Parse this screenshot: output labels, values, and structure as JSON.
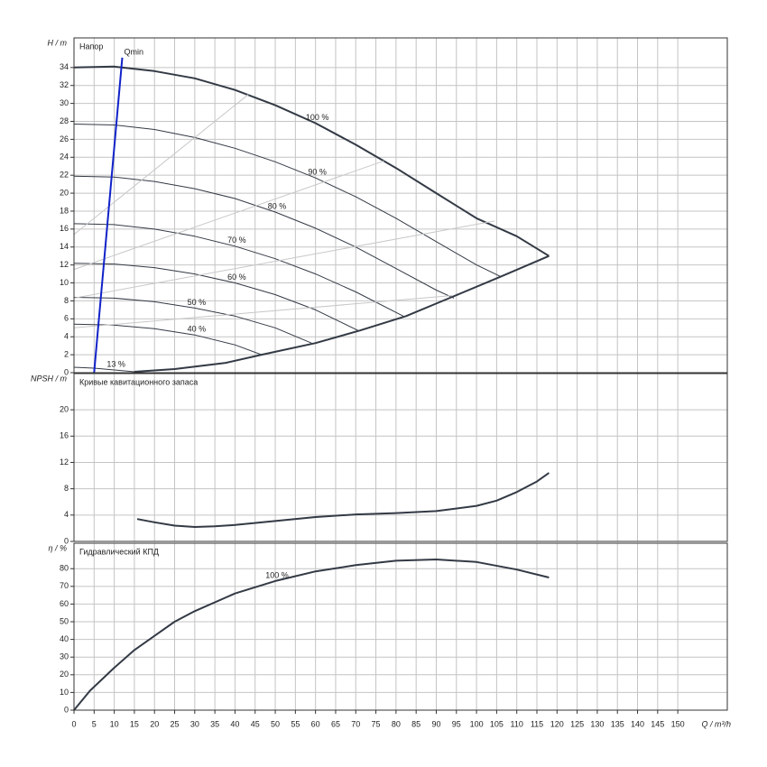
{
  "chart_data": [
    {
      "type": "line",
      "title": "Напор",
      "ylabel": "H / m",
      "ylim": [
        0,
        37.3
      ],
      "yticks": [
        0,
        2,
        4,
        6,
        8,
        10,
        12,
        14,
        16,
        18,
        20,
        22,
        24,
        26,
        28,
        30,
        32,
        34
      ],
      "grid": true,
      "series": [
        {
          "name": "100 %",
          "color": "#333a45",
          "width": 2,
          "x": [
            0,
            10,
            20,
            30,
            40,
            50,
            60,
            70,
            80,
            90,
            100,
            110,
            118
          ],
          "values": [
            34,
            34.1,
            33.6,
            32.8,
            31.5,
            29.8,
            27.8,
            25.4,
            22.8,
            20,
            17.2,
            15.2,
            13
          ]
        },
        {
          "name": "90 %",
          "color": "#333a45",
          "width": 1,
          "x": [
            0,
            10,
            20,
            30,
            40,
            50,
            60,
            70,
            80,
            90,
            100,
            106
          ],
          "values": [
            27.7,
            27.6,
            27.1,
            26.2,
            25,
            23.5,
            21.7,
            19.6,
            17.2,
            14.6,
            12,
            10.7
          ]
        },
        {
          "name": "80 %",
          "color": "#333a45",
          "width": 1,
          "x": [
            0,
            10,
            20,
            30,
            40,
            50,
            60,
            70,
            80,
            90,
            94.4
          ],
          "values": [
            21.9,
            21.8,
            21.3,
            20.5,
            19.4,
            17.9,
            16.1,
            14,
            11.6,
            9.2,
            8.3
          ]
        },
        {
          "name": "70 %",
          "color": "#333a45",
          "width": 1,
          "x": [
            0,
            10,
            20,
            30,
            40,
            50,
            60,
            70,
            81.8
          ],
          "values": [
            16.6,
            16.5,
            16,
            15.2,
            14.1,
            12.7,
            11,
            9,
            6.3
          ]
        },
        {
          "name": "60 %",
          "color": "#333a45",
          "width": 1,
          "x": [
            0,
            10,
            20,
            30,
            40,
            50,
            60,
            70.6
          ],
          "values": [
            12.2,
            12.1,
            11.7,
            11,
            10,
            8.7,
            7,
            4.7
          ]
        },
        {
          "name": "50 %",
          "color": "#333a45",
          "width": 1,
          "x": [
            0,
            10,
            20,
            30,
            40,
            50,
            59
          ],
          "values": [
            8.4,
            8.3,
            7.9,
            7.2,
            6.3,
            5,
            3.3
          ]
        },
        {
          "name": "40 %",
          "color": "#333a45",
          "width": 1,
          "x": [
            0,
            10,
            20,
            30,
            40,
            46.6
          ],
          "values": [
            5.4,
            5.3,
            4.9,
            4.2,
            3.1,
            2
          ]
        },
        {
          "name": "13 %",
          "color": "#333a45",
          "width": 1,
          "x": [
            0,
            5,
            10,
            15
          ],
          "values": [
            0.6,
            0.5,
            0.3,
            0.1
          ]
        },
        {
          "color": "#333a45",
          "width": 2,
          "x": [
            15,
            25,
            37.7,
            46.6,
            60,
            71,
            82.5,
            93.7,
            106,
            118
          ],
          "values": [
            0.1,
            0.4,
            1.1,
            2,
            3.3,
            4.7,
            6.3,
            8.4,
            10.7,
            13
          ]
        },
        {
          "color": "#c8c8c8",
          "width": 1,
          "x": [
            0,
            43.3
          ],
          "values": [
            15.4,
            31
          ]
        },
        {
          "color": "#c8c8c8",
          "width": 1,
          "x": [
            0,
            77
          ],
          "values": [
            11.5,
            23.6
          ]
        },
        {
          "color": "#c8c8c8",
          "width": 1,
          "x": [
            0,
            104.5
          ],
          "values": [
            8.3,
            16.9
          ]
        },
        {
          "color": "#c8c8c8",
          "width": 1,
          "x": [
            0,
            94
          ],
          "values": [
            5,
            8.6
          ]
        },
        {
          "name": "Qmin",
          "color": "#1022c8",
          "width": 2,
          "x": [
            5,
            12
          ],
          "values": [
            0,
            35.1
          ]
        }
      ]
    },
    {
      "type": "line",
      "title": "Кривые кавитационного запаса",
      "ylabel": "NPSH / m",
      "ylim": [
        0,
        25.5
      ],
      "yticks": [
        0,
        4,
        8,
        12,
        16,
        20
      ],
      "grid": true,
      "series": [
        {
          "color": "#333a45",
          "width": 2,
          "x": [
            15.7,
            20,
            25,
            30,
            35,
            40,
            50,
            60,
            70,
            80,
            90,
            100,
            105,
            110,
            115,
            118
          ],
          "values": [
            3.4,
            2.9,
            2.4,
            2.2,
            2.3,
            2.5,
            3.1,
            3.7,
            4.1,
            4.3,
            4.6,
            5.4,
            6.2,
            7.5,
            9.1,
            10.4
          ]
        }
      ]
    },
    {
      "type": "line",
      "title": "Гидравлический КПД",
      "ylabel": "η / %",
      "ylim": [
        0,
        94.4
      ],
      "yticks": [
        0,
        10,
        20,
        30,
        40,
        50,
        60,
        70,
        80
      ],
      "grid": true,
      "xlabel": "Q / m³/h",
      "xlim": [
        0,
        162.3
      ],
      "xticks": [
        0,
        5,
        10,
        15,
        20,
        25,
        30,
        35,
        40,
        45,
        50,
        55,
        60,
        65,
        70,
        75,
        80,
        85,
        90,
        95,
        100,
        105,
        110,
        115,
        120,
        125,
        130,
        135,
        140,
        145,
        150
      ],
      "series": [
        {
          "name": "100 %",
          "color": "#333a45",
          "width": 2,
          "x": [
            0,
            4,
            10,
            15,
            20,
            25,
            30,
            40,
            50,
            60,
            70,
            80,
            90,
            100,
            110,
            118
          ],
          "values": [
            0,
            11,
            24,
            34,
            42,
            50,
            56,
            66,
            73,
            78.5,
            82,
            84.5,
            85.2,
            83.8,
            79.5,
            75
          ]
        }
      ]
    }
  ]
}
